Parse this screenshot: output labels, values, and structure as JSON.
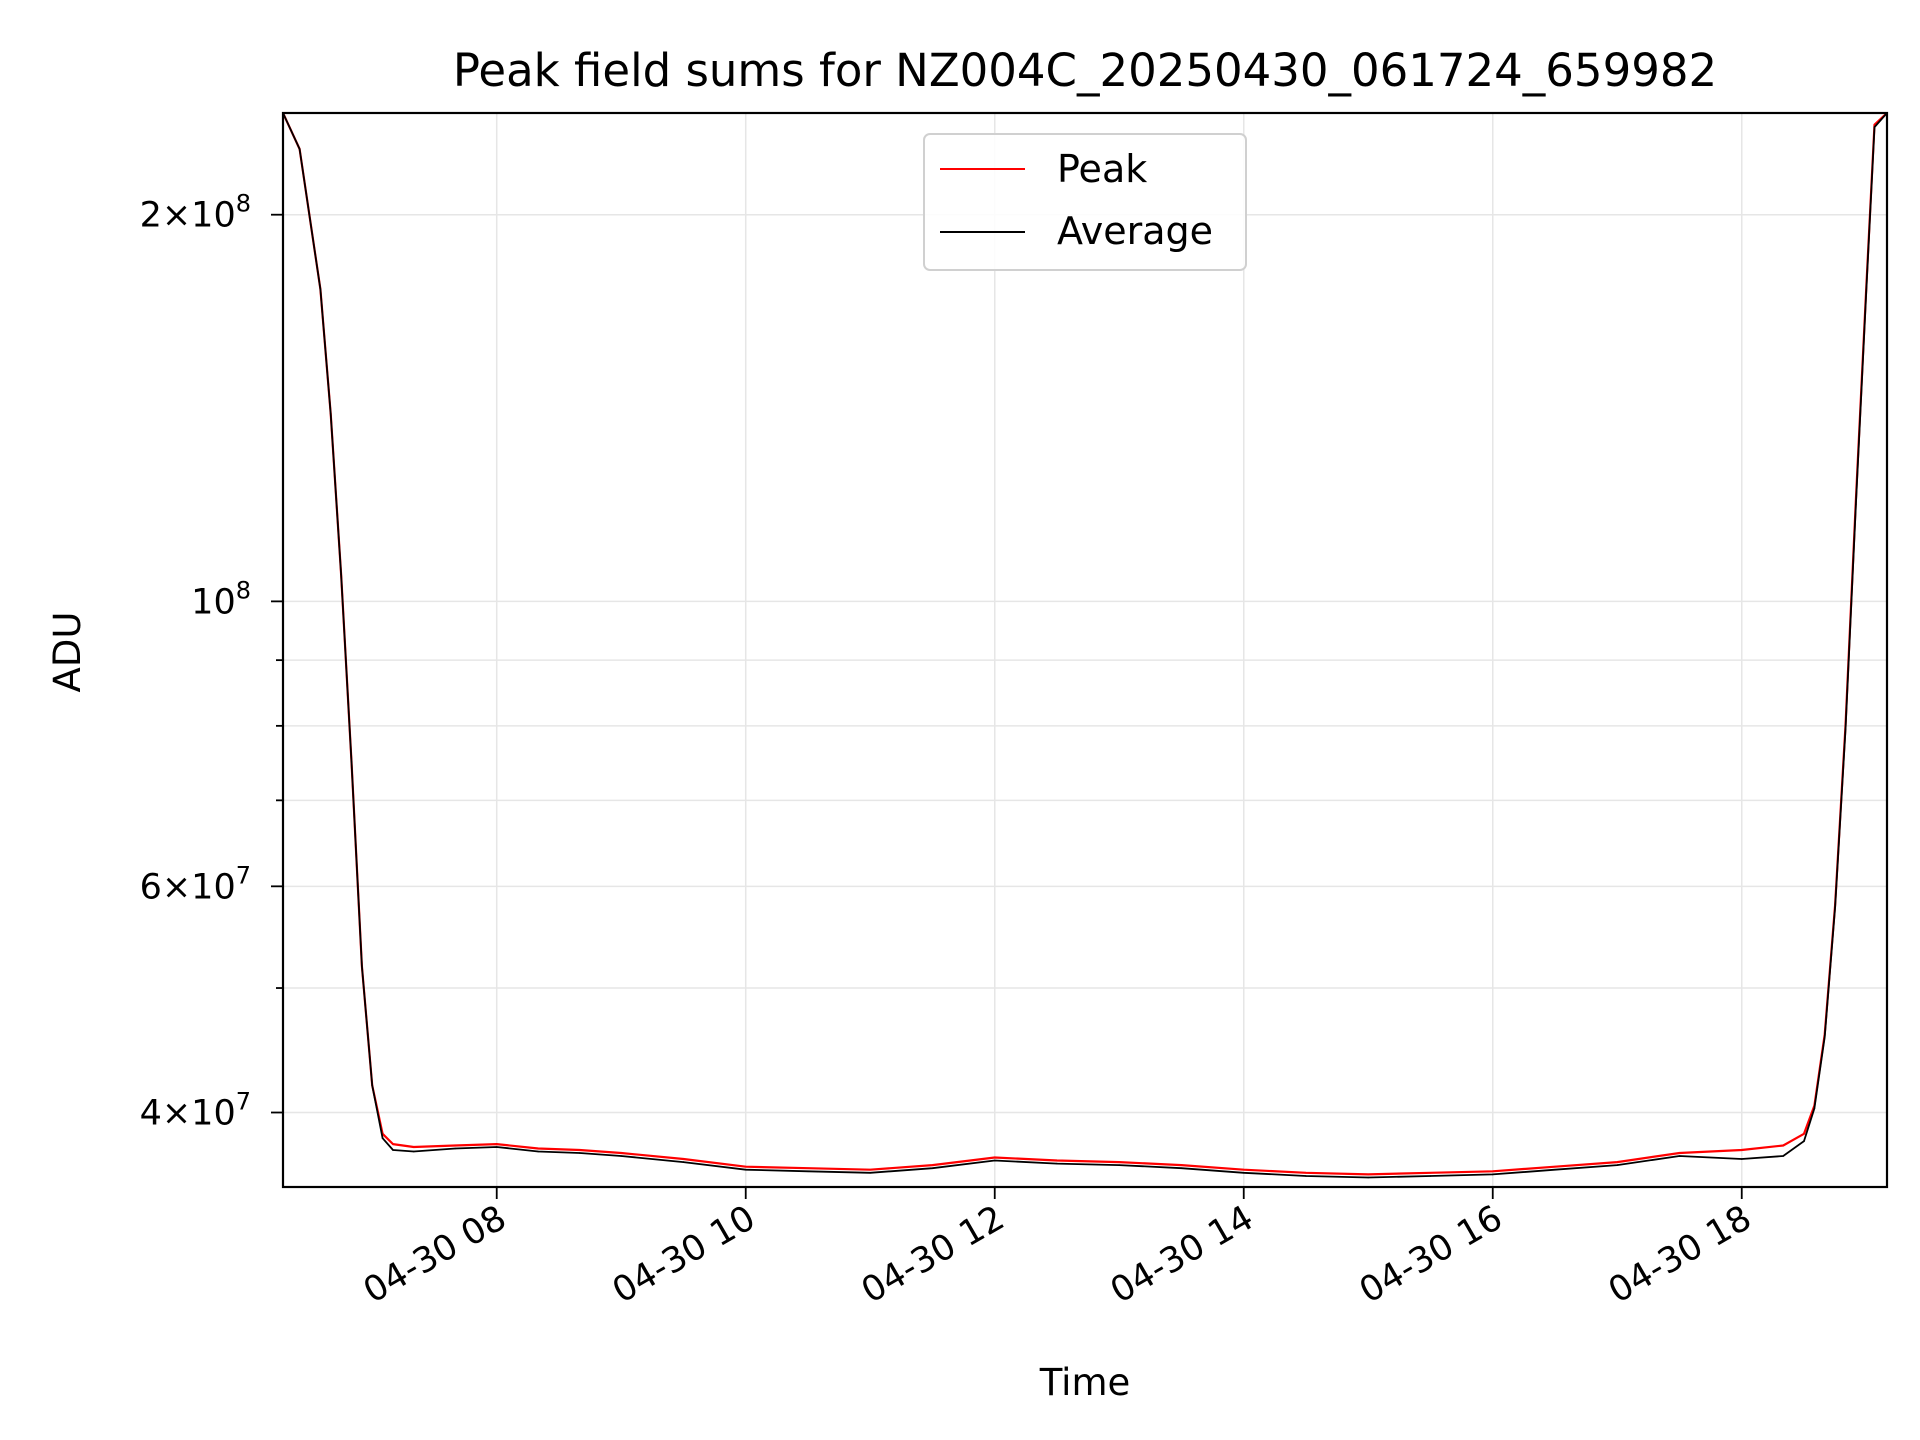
{
  "chart_data": {
    "type": "line",
    "title": "Peak field sums for NZ004C_20250430_061724_659982",
    "xlabel": "Time",
    "ylabel": "ADU",
    "yscale": "log",
    "ylim": [
      35000000,
      240000000
    ],
    "xlim": [
      "2025-04-30 06:17",
      "2025-04-30 19:10"
    ],
    "grid": true,
    "legend_position": "top-center",
    "x_ticks": [
      {
        "value": "2025-04-30 08:00",
        "label": "04-30 08"
      },
      {
        "value": "2025-04-30 10:00",
        "label": "04-30 10"
      },
      {
        "value": "2025-04-30 12:00",
        "label": "04-30 12"
      },
      {
        "value": "2025-04-30 14:00",
        "label": "04-30 14"
      },
      {
        "value": "2025-04-30 16:00",
        "label": "04-30 16"
      },
      {
        "value": "2025-04-30 18:00",
        "label": "04-30 18"
      }
    ],
    "y_ticks": [
      {
        "value": 40000000,
        "mantissa": "4",
        "exponent": "7"
      },
      {
        "value": 60000000,
        "mantissa": "6",
        "exponent": "7"
      },
      {
        "value": 100000000,
        "mantissa": "",
        "exponent": "8"
      },
      {
        "value": 200000000,
        "mantissa": "2",
        "exponent": "8"
      }
    ],
    "y_minor_ticks": [
      50000000,
      70000000,
      80000000,
      90000000
    ],
    "series": [
      {
        "name": "Peak",
        "color": "#ff0000",
        "x": [
          "2025-04-30 06:17",
          "2025-04-30 06:25",
          "2025-04-30 06:35",
          "2025-04-30 06:40",
          "2025-04-30 06:45",
          "2025-04-30 06:50",
          "2025-04-30 06:55",
          "2025-04-30 07:00",
          "2025-04-30 07:05",
          "2025-04-30 07:10",
          "2025-04-30 07:20",
          "2025-04-30 07:40",
          "2025-04-30 08:00",
          "2025-04-30 08:20",
          "2025-04-30 08:40",
          "2025-04-30 09:00",
          "2025-04-30 09:30",
          "2025-04-30 10:00",
          "2025-04-30 10:30",
          "2025-04-30 11:00",
          "2025-04-30 11:30",
          "2025-04-30 12:00",
          "2025-04-30 12:30",
          "2025-04-30 13:00",
          "2025-04-30 13:30",
          "2025-04-30 14:00",
          "2025-04-30 14:30",
          "2025-04-30 15:00",
          "2025-04-30 15:30",
          "2025-04-30 16:00",
          "2025-04-30 16:30",
          "2025-04-30 17:00",
          "2025-04-30 17:30",
          "2025-04-30 18:00",
          "2025-04-30 18:20",
          "2025-04-30 18:30",
          "2025-04-30 18:35",
          "2025-04-30 18:40",
          "2025-04-30 18:45",
          "2025-04-30 18:50",
          "2025-04-30 18:55",
          "2025-04-30 19:00",
          "2025-04-30 19:04",
          "2025-04-30 19:10"
        ],
        "y": [
          240000000,
          225000000,
          175000000,
          140000000,
          105000000,
          75000000,
          52000000,
          42000000,
          38500000,
          37800000,
          37600000,
          37700000,
          37800000,
          37500000,
          37400000,
          37200000,
          36800000,
          36300000,
          36200000,
          36100000,
          36400000,
          36900000,
          36700000,
          36600000,
          36400000,
          36100000,
          35900000,
          35800000,
          35900000,
          36000000,
          36300000,
          36600000,
          37200000,
          37400000,
          37700000,
          38500000,
          40500000,
          46000000,
          58000000,
          80000000,
          120000000,
          175000000,
          235000000,
          240000000
        ]
      },
      {
        "name": "Average",
        "color": "#000000",
        "x": [
          "2025-04-30 06:17",
          "2025-04-30 06:25",
          "2025-04-30 06:35",
          "2025-04-30 06:40",
          "2025-04-30 06:45",
          "2025-04-30 06:50",
          "2025-04-30 06:55",
          "2025-04-30 07:00",
          "2025-04-30 07:05",
          "2025-04-30 07:10",
          "2025-04-30 07:20",
          "2025-04-30 07:40",
          "2025-04-30 08:00",
          "2025-04-30 08:20",
          "2025-04-30 08:40",
          "2025-04-30 09:00",
          "2025-04-30 09:30",
          "2025-04-30 10:00",
          "2025-04-30 10:30",
          "2025-04-30 11:00",
          "2025-04-30 11:30",
          "2025-04-30 12:00",
          "2025-04-30 12:30",
          "2025-04-30 13:00",
          "2025-04-30 13:30",
          "2025-04-30 14:00",
          "2025-04-30 14:30",
          "2025-04-30 15:00",
          "2025-04-30 15:30",
          "2025-04-30 16:00",
          "2025-04-30 16:30",
          "2025-04-30 17:00",
          "2025-04-30 17:30",
          "2025-04-30 18:00",
          "2025-04-30 18:20",
          "2025-04-30 18:30",
          "2025-04-30 18:35",
          "2025-04-30 18:40",
          "2025-04-30 18:45",
          "2025-04-30 18:50",
          "2025-04-30 18:55",
          "2025-04-30 19:00",
          "2025-04-30 19:04",
          "2025-04-30 19:10"
        ],
        "y": [
          240000000,
          225000000,
          175000000,
          140000000,
          105000000,
          75000000,
          52000000,
          42000000,
          38200000,
          37400000,
          37300000,
          37500000,
          37600000,
          37300000,
          37200000,
          37000000,
          36600000,
          36100000,
          36000000,
          35900000,
          36200000,
          36700000,
          36500000,
          36400000,
          36200000,
          35900000,
          35700000,
          35600000,
          35700000,
          35800000,
          36100000,
          36400000,
          37000000,
          36800000,
          37000000,
          38000000,
          40300000,
          45800000,
          57800000,
          79500000,
          119000000,
          174000000,
          234000000,
          240000000
        ]
      }
    ]
  }
}
